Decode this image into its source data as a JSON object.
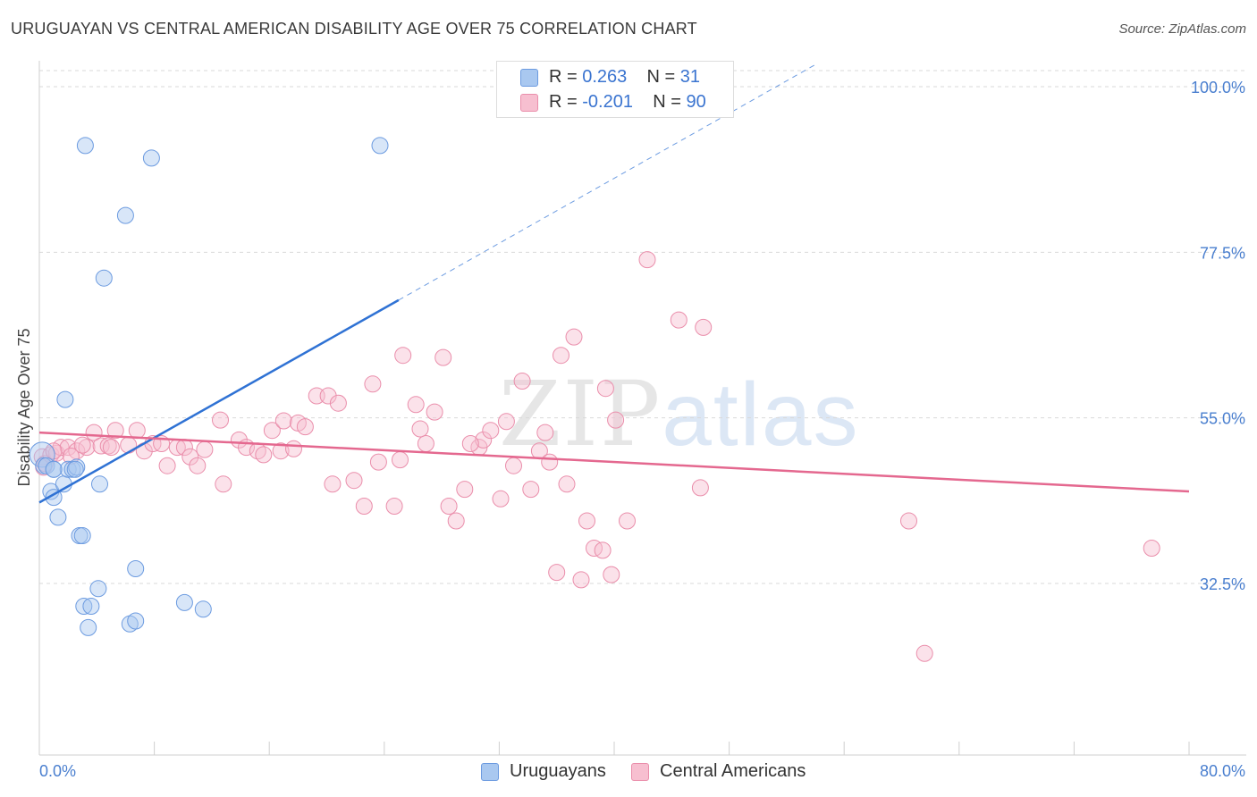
{
  "header": {
    "title": "URUGUAYAN VS CENTRAL AMERICAN DISABILITY AGE OVER 75 CORRELATION CHART",
    "source": "Source: ZipAtlas.com"
  },
  "legend": {
    "rows": [
      {
        "r_label": "R = ",
        "r_value": "0.263",
        "n_label": "N = ",
        "n_value": "31"
      },
      {
        "r_label": "R = ",
        "r_value": "-0.201",
        "n_label": "N = ",
        "n_value": "90"
      }
    ]
  },
  "bottom_legend": {
    "uruguayans": "Uruguayans",
    "central_americans": "Central Americans"
  },
  "watermark": {
    "zip": "ZIP",
    "atlas": "atlas"
  },
  "colors": {
    "uruguayans_fill": "#a9c8f0",
    "uruguayans_stroke": "#6c9be0",
    "uruguayans_line": "#2f72d4",
    "central_fill": "#f7bfd0",
    "central_stroke": "#ea8eab",
    "central_line": "#e4688f",
    "tick_text": "#4a7fcf"
  },
  "chart_data": {
    "type": "scatter",
    "title": "URUGUAYAN VS CENTRAL AMERICAN DISABILITY AGE OVER 75 CORRELATION CHART",
    "xlabel": "",
    "ylabel": "Disability Age Over 75",
    "xlim": [
      0,
      80
    ],
    "ylim": [
      12.5,
      100
    ],
    "x_tick_labels": [
      "0.0%",
      "80.0%"
    ],
    "y_tick_labels": [
      {
        "value": 100,
        "label": "100.0%"
      },
      {
        "value": 77.5,
        "label": "77.5%"
      },
      {
        "value": 55,
        "label": "55.0%"
      },
      {
        "value": 32.5,
        "label": "32.5%"
      }
    ],
    "grid": "horizontal dashed",
    "legend_position": "top-center",
    "series": [
      {
        "name": "Uruguayans",
        "r": 0.263,
        "n": 31,
        "trend": {
          "x": [
            0,
            25
          ],
          "y": [
            43.5,
            71.0
          ],
          "dashed_to": [
            54.0,
            103.0
          ]
        },
        "points": [
          [
            0.2,
            50.0
          ],
          [
            0.3,
            48.5
          ],
          [
            0.5,
            48.5
          ],
          [
            1.0,
            48.0
          ],
          [
            0.8,
            45.0
          ],
          [
            1.0,
            44.2
          ],
          [
            1.3,
            41.5
          ],
          [
            1.7,
            46.0
          ],
          [
            1.8,
            57.5
          ],
          [
            2.0,
            48.0
          ],
          [
            2.3,
            48.0
          ],
          [
            2.6,
            48.3
          ],
          [
            2.8,
            39.0
          ],
          [
            3.0,
            39.0
          ],
          [
            4.2,
            46.0
          ],
          [
            3.2,
            92.0
          ],
          [
            6.0,
            82.5
          ],
          [
            7.8,
            90.3
          ],
          [
            4.5,
            74.0
          ],
          [
            23.7,
            92.0
          ],
          [
            4.1,
            31.8
          ],
          [
            3.1,
            29.4
          ],
          [
            3.6,
            29.4
          ],
          [
            3.4,
            26.5
          ],
          [
            6.7,
            34.5
          ],
          [
            6.3,
            27.0
          ],
          [
            6.7,
            27.4
          ],
          [
            10.1,
            29.9
          ],
          [
            11.4,
            29.0
          ],
          [
            2.5,
            48.0
          ],
          [
            1.0,
            48.0
          ]
        ]
      },
      {
        "name": "Central Americans",
        "r": -0.201,
        "n": 90,
        "trend": {
          "x": [
            0,
            80
          ],
          "y": [
            53.0,
            45.0
          ]
        },
        "points": [
          [
            0.2,
            49.7
          ],
          [
            0.3,
            48.3
          ],
          [
            0.4,
            48.8
          ],
          [
            0.8,
            50.0
          ],
          [
            1.2,
            50.2
          ],
          [
            1.5,
            51.0
          ],
          [
            2.0,
            51.0
          ],
          [
            2.6,
            50.5
          ],
          [
            3.3,
            51.0
          ],
          [
            3.8,
            53.0
          ],
          [
            4.3,
            51.2
          ],
          [
            4.8,
            51.2
          ],
          [
            5.3,
            53.3
          ],
          [
            6.2,
            51.3
          ],
          [
            6.8,
            53.3
          ],
          [
            7.3,
            50.5
          ],
          [
            7.9,
            51.5
          ],
          [
            8.5,
            51.5
          ],
          [
            8.9,
            48.5
          ],
          [
            9.6,
            51.0
          ],
          [
            10.1,
            51.0
          ],
          [
            10.5,
            49.7
          ],
          [
            11.0,
            48.5
          ],
          [
            11.5,
            50.7
          ],
          [
            12.6,
            54.7
          ],
          [
            12.8,
            46.0
          ],
          [
            13.9,
            52.0
          ],
          [
            14.4,
            51.0
          ],
          [
            15.2,
            50.5
          ],
          [
            15.6,
            50.0
          ],
          [
            16.2,
            53.3
          ],
          [
            16.8,
            50.5
          ],
          [
            17.0,
            54.6
          ],
          [
            17.7,
            50.8
          ],
          [
            18.0,
            54.3
          ],
          [
            18.5,
            53.8
          ],
          [
            19.3,
            58.0
          ],
          [
            20.1,
            58.0
          ],
          [
            20.8,
            57.0
          ],
          [
            20.4,
            46.0
          ],
          [
            21.9,
            46.5
          ],
          [
            22.6,
            43.0
          ],
          [
            23.2,
            59.6
          ],
          [
            23.6,
            49.0
          ],
          [
            24.7,
            43.0
          ],
          [
            25.3,
            63.5
          ],
          [
            25.1,
            49.3
          ],
          [
            26.2,
            56.8
          ],
          [
            26.5,
            53.5
          ],
          [
            26.9,
            51.5
          ],
          [
            27.5,
            55.8
          ],
          [
            28.1,
            63.2
          ],
          [
            28.5,
            43.0
          ],
          [
            29.0,
            41.0
          ],
          [
            29.6,
            45.3
          ],
          [
            30.6,
            51.0
          ],
          [
            30.9,
            52.0
          ],
          [
            31.4,
            53.3
          ],
          [
            32.1,
            44.0
          ],
          [
            32.5,
            54.5
          ],
          [
            33.0,
            48.5
          ],
          [
            33.6,
            60.0
          ],
          [
            34.2,
            45.3
          ],
          [
            34.8,
            50.5
          ],
          [
            35.2,
            53.0
          ],
          [
            35.5,
            49.0
          ],
          [
            36.0,
            34.0
          ],
          [
            36.3,
            63.5
          ],
          [
            36.7,
            46.0
          ],
          [
            37.2,
            66.0
          ],
          [
            37.7,
            33.0
          ],
          [
            38.1,
            41.0
          ],
          [
            38.6,
            37.3
          ],
          [
            39.2,
            37.0
          ],
          [
            39.4,
            59.0
          ],
          [
            39.8,
            33.7
          ],
          [
            40.1,
            54.7
          ],
          [
            40.9,
            41.0
          ],
          [
            42.3,
            76.5
          ],
          [
            44.5,
            68.3
          ],
          [
            46.2,
            67.3
          ],
          [
            46.0,
            45.5
          ],
          [
            30.0,
            51.5
          ],
          [
            5.0,
            51.0
          ],
          [
            3.0,
            51.3
          ],
          [
            1.0,
            50.5
          ],
          [
            60.5,
            41.0
          ],
          [
            61.6,
            23.0
          ],
          [
            77.4,
            37.3
          ],
          [
            2.2,
            49.8
          ]
        ]
      }
    ]
  }
}
